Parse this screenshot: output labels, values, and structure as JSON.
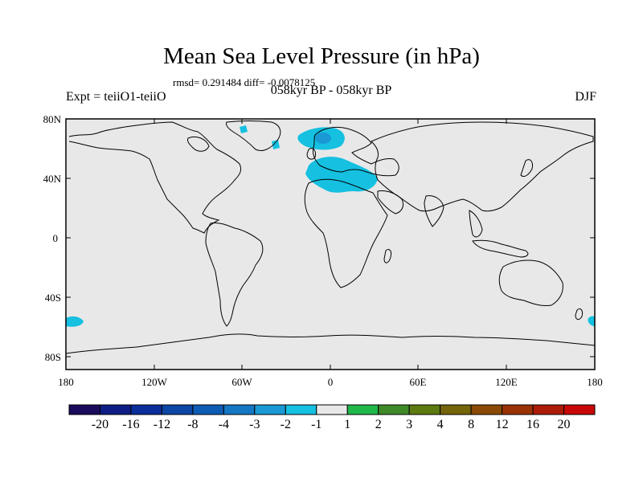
{
  "title": "Mean Sea Level Pressure (in hPa)",
  "stats": "rmsd= 0.291484 diff= -0.0078125",
  "left_label": "Expt = teiiO1-teiiO",
  "center_label": "058kyr BP - 058kyr BP",
  "right_label": "DJF",
  "lat_ticks": [
    "80N",
    "40N",
    "0",
    "40S",
    "80S"
  ],
  "lon_ticks": [
    "180",
    "120W",
    "60W",
    "0",
    "60E",
    "120E",
    "180"
  ],
  "colorbar": {
    "colors": [
      "#1b0b5c",
      "#0e1e84",
      "#0a2e9a",
      "#0c46a6",
      "#0d5cb4",
      "#1477c4",
      "#1a99d4",
      "#15c0e0",
      "#e8e8e8",
      "#20b84a",
      "#3f8a28",
      "#5d7a10",
      "#75640a",
      "#8a4a06",
      "#9a3206",
      "#ac1c08",
      "#c80808"
    ],
    "labels": [
      "-20",
      "-16",
      "-12",
      "-8",
      "-4",
      "-3",
      "-2",
      "-1",
      "1",
      "2",
      "3",
      "4",
      "8",
      "12",
      "16",
      "20"
    ]
  },
  "colors": {
    "land_background": "#e8e8e8",
    "anomaly_fill": "#15c0e0",
    "anomaly_core": "#1a99d4"
  }
}
